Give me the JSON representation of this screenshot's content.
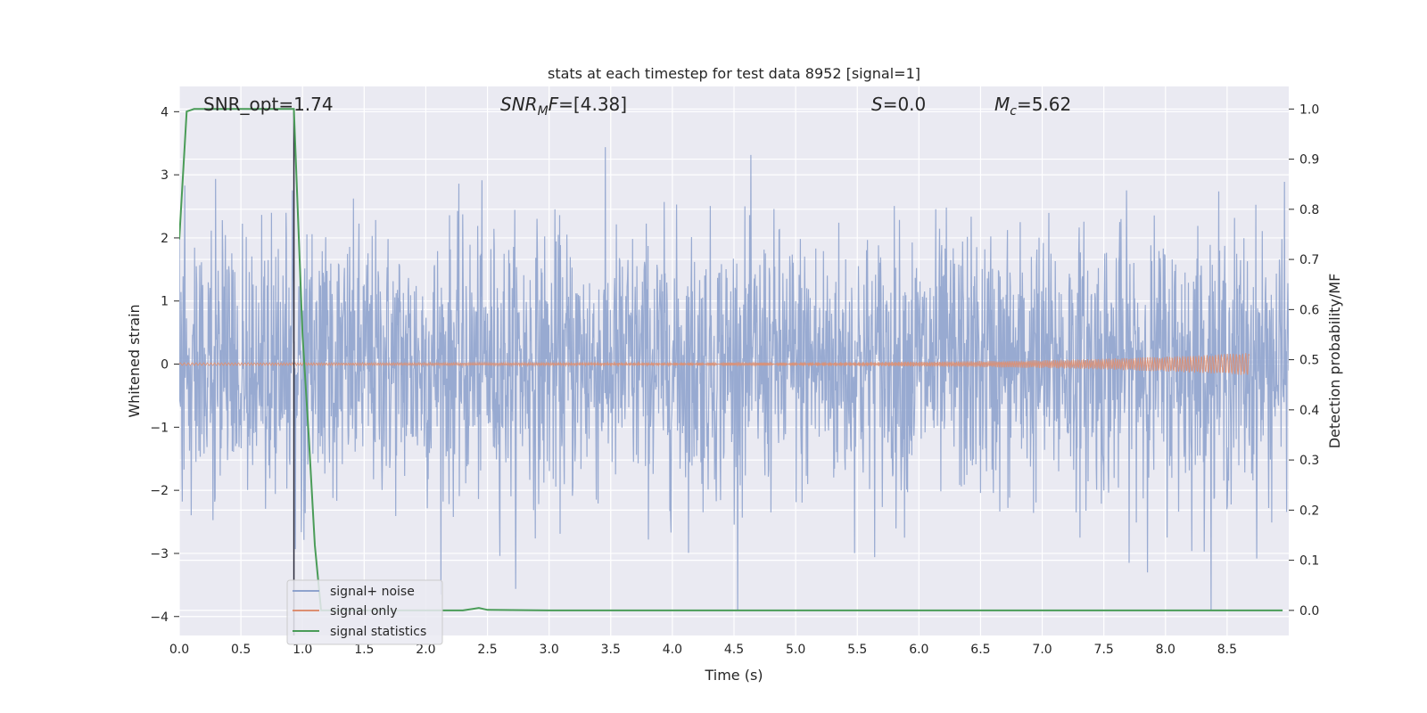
{
  "chart_data": {
    "type": "line",
    "title": "stats at each timestep for test data 8952 [signal=1]",
    "xlabel": "Time (s)",
    "ylabel": "Whitened strain",
    "ylabel_right": "Detection probability/MF",
    "xlim": [
      0.0,
      9.0
    ],
    "ylim": [
      -4.3,
      4.4
    ],
    "ylim_right": [
      -0.05,
      1.045
    ],
    "x_ticks": [
      "0.0",
      "0.5",
      "1.0",
      "1.5",
      "2.0",
      "2.5",
      "3.0",
      "3.5",
      "4.0",
      "4.5",
      "5.0",
      "5.5",
      "6.0",
      "6.5",
      "7.0",
      "7.5",
      "8.0",
      "8.5"
    ],
    "y_ticks": [
      "4",
      "3",
      "2",
      "1",
      "0",
      "−1",
      "−2",
      "−3",
      "−4"
    ],
    "y_ticks_right": [
      "1.0",
      "0.9",
      "0.8",
      "0.7",
      "0.6",
      "0.5",
      "0.4",
      "0.3",
      "0.2",
      "0.1",
      "0.0"
    ],
    "grid": true,
    "legend_placement": "lower-left",
    "annotations": {
      "snr_opt": "SNR_opt=1.74",
      "snr_mf_main": "SNR",
      "snr_mf_sub": "M",
      "snr_mf_rest": "F=[4.38]",
      "s_main": "S",
      "s_rest": "=0.0",
      "mc_main": "M",
      "mc_sub": "c",
      "mc_rest": "=5.62"
    },
    "vertical_line_x": 0.93,
    "series": [
      {
        "name": "signal+ noise",
        "color": "#8fa3cd",
        "axis": "left",
        "x_range": [
          0.0,
          9.0
        ],
        "amplitude_typical": 2.3,
        "y_max": 3.95,
        "y_min": -3.9
      },
      {
        "name": "signal only",
        "color": "#dd8f72",
        "axis": "left",
        "x_range": [
          0.0,
          8.68
        ],
        "amplitude_start": 0.02,
        "amplitude_end": 0.18
      },
      {
        "name": "signal statistics",
        "color": "#4a9c58",
        "axis": "right",
        "x": [
          0.0,
          0.06,
          0.12,
          0.5,
          0.9,
          0.93,
          1.0,
          1.05,
          1.1,
          1.15,
          1.5,
          2.0,
          2.3,
          2.38,
          2.43,
          2.5,
          3.0,
          5.0,
          7.0,
          8.95
        ],
        "values": [
          0.74,
          0.995,
          1.0,
          1.0,
          1.0,
          1.0,
          0.55,
          0.35,
          0.13,
          0.0,
          0.0,
          0.0,
          0.0,
          0.003,
          0.005,
          0.001,
          0.0,
          0.0,
          0.0,
          0.0
        ]
      }
    ]
  }
}
